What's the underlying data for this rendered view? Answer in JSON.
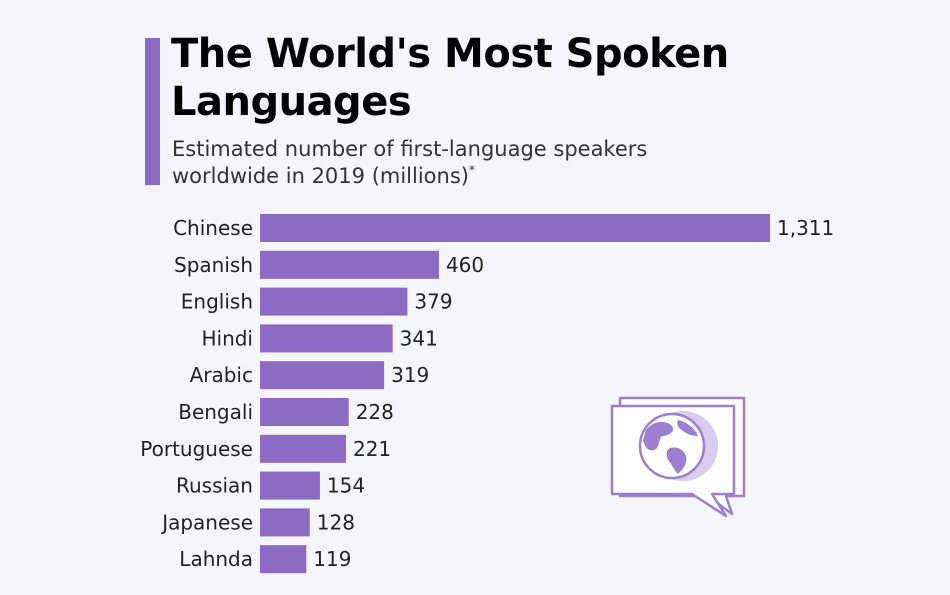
{
  "header": {
    "title": "The World's Most Spoken Languages",
    "subtitle": "Estimated number of first-language speakers worldwide in 2019 (millions)",
    "subtitle_note_mark": "*"
  },
  "colors": {
    "bar": "#8d6ac4",
    "accent": "#8d6ac4",
    "icon_light": "#d9ccee",
    "icon_outline": "#9b7fd0"
  },
  "icon": "speech-bubble-globe-icon",
  "chart_data": {
    "type": "bar",
    "orientation": "horizontal",
    "title": "The World's Most Spoken Languages",
    "subtitle": "Estimated number of first-language speakers worldwide in 2019 (millions)*",
    "categories": [
      "Chinese",
      "Spanish",
      "English",
      "Hindi",
      "Arabic",
      "Bengali",
      "Portuguese",
      "Russian",
      "Japanese",
      "Lahnda"
    ],
    "values": [
      1311,
      460,
      379,
      341,
      319,
      228,
      221,
      154,
      128,
      119
    ],
    "value_labels": [
      "1,311",
      "460",
      "379",
      "341",
      "319",
      "228",
      "221",
      "154",
      "128",
      "119"
    ],
    "xlim": [
      0,
      1311
    ],
    "grid": false,
    "legend": "none"
  }
}
